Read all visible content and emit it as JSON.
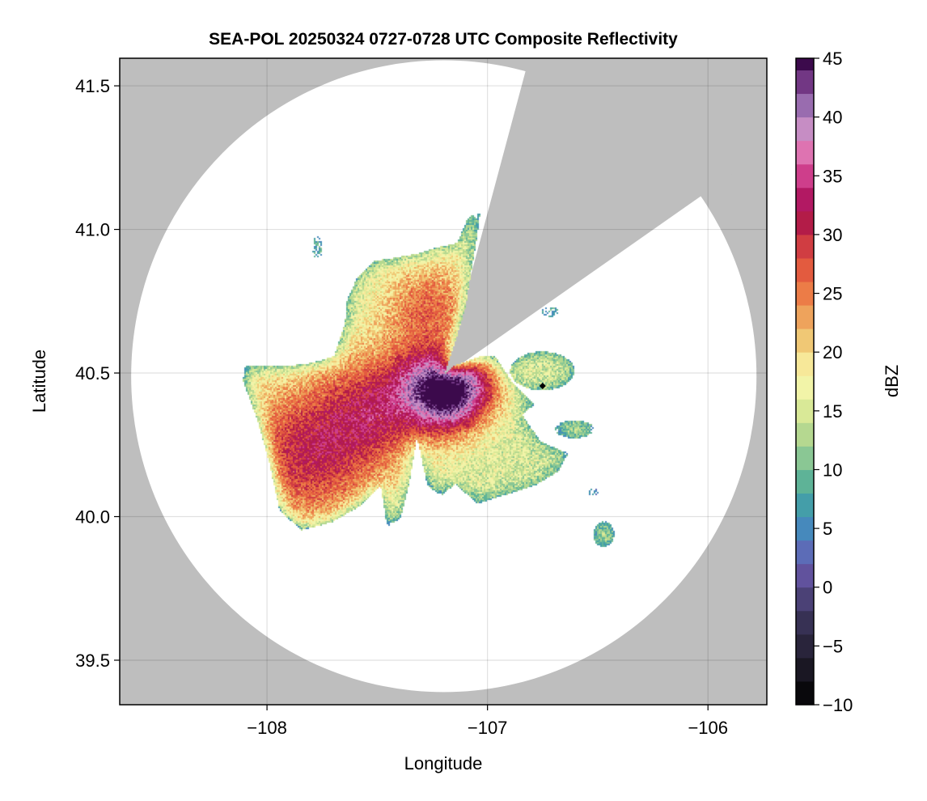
{
  "chart_data": {
    "type": "heatmap",
    "title": "SEA-POL 20250324 0727-0728 UTC Composite Reflectivity",
    "xlabel": "Longitude",
    "ylabel": "Latitude",
    "xlim": [
      -108.668,
      -105.733
    ],
    "ylim": [
      39.345,
      41.596
    ],
    "xticks": [
      -108,
      -107,
      -106
    ],
    "xtick_labels": [
      "−108",
      "−107",
      "−106"
    ],
    "yticks": [
      39.5,
      40.0,
      40.5,
      41.0,
      41.5
    ],
    "ytick_labels": [
      "39.5",
      "40.0",
      "40.5",
      "41.0",
      "41.5"
    ],
    "grid": true,
    "radar_site": {
      "lon": -107.198,
      "lat": 40.489,
      "range_deg_lat": 1.1
    },
    "marker": {
      "lon": -106.75,
      "lat": 40.455,
      "symbol": "diamond",
      "color": "#000000"
    },
    "blocked_sector_bearings_deg": [
      15,
      55
    ],
    "background_color": "#bebebe",
    "coverage_color": "#ffffff",
    "colorbar": {
      "label": "dBZ",
      "range": [
        -10,
        45
      ],
      "bin_width": 2,
      "ticks": [
        -10,
        -5,
        0,
        5,
        10,
        15,
        20,
        25,
        30,
        35,
        40,
        45
      ],
      "tick_labels": [
        "−10",
        "−5",
        "0",
        "5",
        "10",
        "15",
        "20",
        "25",
        "30",
        "35",
        "40",
        "45"
      ],
      "color_stops": [
        [
          -10,
          "#000000"
        ],
        [
          -6,
          "#221e2e"
        ],
        [
          -2,
          "#3e3760"
        ],
        [
          0,
          "#574a8c"
        ],
        [
          2,
          "#6a5aad"
        ],
        [
          4,
          "#4d7ec0"
        ],
        [
          6,
          "#3e94b8"
        ],
        [
          8,
          "#4aa899"
        ],
        [
          10,
          "#72bd95"
        ],
        [
          12,
          "#a2d092"
        ],
        [
          14,
          "#c8e08e"
        ],
        [
          16,
          "#e9f1a0"
        ],
        [
          18,
          "#fbf7b0"
        ],
        [
          20,
          "#f2d882"
        ],
        [
          22,
          "#eeb768"
        ],
        [
          24,
          "#ee8e50"
        ],
        [
          26,
          "#ea6a3e"
        ],
        [
          28,
          "#dc4b3f"
        ],
        [
          30,
          "#c42e45"
        ],
        [
          32,
          "#a20a4a"
        ],
        [
          34,
          "#c2287c"
        ],
        [
          36,
          "#d9539a"
        ],
        [
          38,
          "#e392c7"
        ],
        [
          40,
          "#a888c0"
        ],
        [
          42,
          "#8a4f9e"
        ],
        [
          44,
          "#5a1e6a"
        ],
        [
          45,
          "#3c0a4c"
        ]
      ]
    },
    "echo_summary": {
      "max_dBZ_near_radar": 40,
      "southwest_core_dBZ": 28,
      "edge_dBZ": 10
    }
  }
}
